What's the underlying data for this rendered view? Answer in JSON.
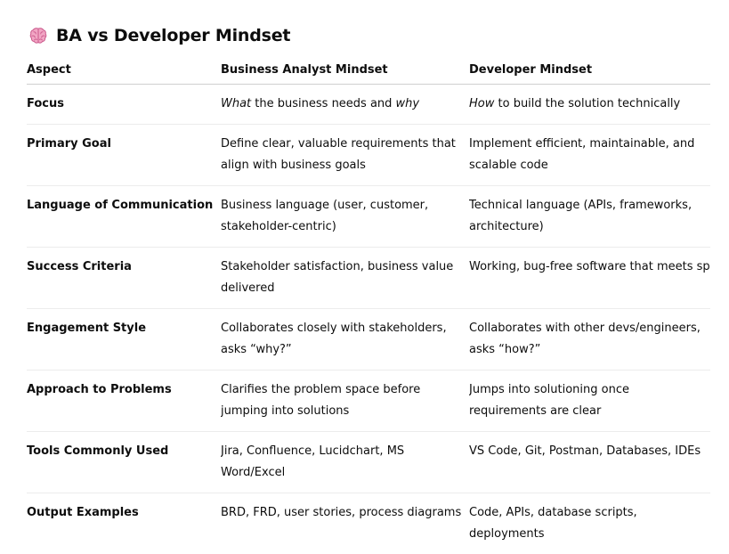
{
  "header": {
    "icon": "brain-icon",
    "title": "BA vs Developer Mindset"
  },
  "table": {
    "columns": [
      "Aspect",
      "Business Analyst Mindset",
      "Developer Mindset"
    ],
    "rows": [
      {
        "aspect": "Focus",
        "ba": {
          "em1": "What",
          "mid": " the business needs and ",
          "em2": "why"
        },
        "dev": {
          "em1": "How",
          "rest": " to build the solution technically"
        }
      },
      {
        "aspect": "Primary Goal",
        "ba": "Define clear, valuable requirements that align with business goals",
        "dev": "Implement efficient, maintainable, and scalable code"
      },
      {
        "aspect": "Language of Communication",
        "ba": "Business language (user, customer, stakeholder-centric)",
        "dev": "Technical language (APIs, frameworks, architecture)"
      },
      {
        "aspect": "Success Criteria",
        "ba": "Stakeholder satisfaction, business value delivered",
        "dev": "Working, bug-free software that meets spec"
      },
      {
        "aspect": "Engagement Style",
        "ba": "Collaborates closely with stakeholders, asks “why?”",
        "dev": "Collaborates with other devs/engineers, asks “how?”"
      },
      {
        "aspect": "Approach to Problems",
        "ba": "Clarifies the problem space before jumping into solutions",
        "dev": "Jumps into solutioning once requirements are clear"
      },
      {
        "aspect": "Tools Commonly Used",
        "ba": "Jira, Confluence, Lucidchart, MS Word/Excel",
        "dev": "VS Code, Git, Postman, Databases, IDEs"
      },
      {
        "aspect": "Output Examples",
        "ba": "BRD, FRD, user stories, process diagrams",
        "dev": "Code, APIs, database scripts, deployments"
      }
    ]
  }
}
